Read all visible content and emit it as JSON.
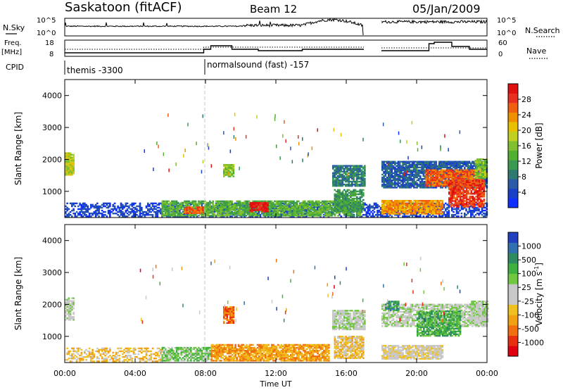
{
  "header": {
    "station": "Saskatoon (fitACF)",
    "beam": "Beam 12",
    "date": "05/Jan/2009"
  },
  "side_labels": {
    "nsky": "N.Sky",
    "freq": "Freq.",
    "freq_unit": "[MHz]",
    "cpid": "CPID",
    "nsearch": "N.Search",
    "nave": "Nave"
  },
  "noise_axis": {
    "left_top": "10^5",
    "left_bottom": "10^0",
    "right_top": "10^5",
    "right_bottom": "10^0"
  },
  "freq_axis": {
    "left_top": "18",
    "left_bottom": "8",
    "right_top": "60",
    "right_bottom": "0"
  },
  "cpid": [
    {
      "label": "themis -3300",
      "start_hour": 0
    },
    {
      "label": "normalsound (fast) -157",
      "start_hour": 8
    }
  ],
  "colors": {
    "axis": "#000000",
    "marker_line": "#c8c8c8"
  },
  "chart_data": [
    {
      "type": "heatmap",
      "name": "power",
      "ylabel": "Slant Range [km]",
      "yticks": [
        "1000",
        "2000",
        "3000",
        "4000"
      ],
      "xlim_hours": [
        0,
        24
      ],
      "ylim_km": [
        180,
        4500
      ],
      "colorbar": {
        "label": "Power [dB]",
        "ticks": [
          "4",
          "8",
          "12",
          "16",
          "20",
          "24",
          "28"
        ],
        "colors": [
          "#1030ff",
          "#1a40c8",
          "#2a5aa8",
          "#2e7a70",
          "#3a9a52",
          "#52b030",
          "#80c030",
          "#c0d020",
          "#e8c000",
          "#f09000",
          "#f06010",
          "#e83020",
          "#e01010"
        ]
      },
      "regions": [
        {
          "t0": 0.0,
          "t1": 0.5,
          "r0": 1500,
          "r1": 2200,
          "level": 7,
          "density": 0.95
        },
        {
          "t0": 0.0,
          "t1": 24.0,
          "r0": 200,
          "r1": 650,
          "level": 1,
          "density": 0.55
        },
        {
          "t0": 5.5,
          "t1": 16.8,
          "r0": 220,
          "r1": 700,
          "level": 5,
          "density": 0.8
        },
        {
          "t0": 6.8,
          "t1": 7.8,
          "r0": 300,
          "r1": 520,
          "level": 10,
          "density": 0.85
        },
        {
          "t0": 9.0,
          "t1": 9.6,
          "r0": 1450,
          "r1": 1850,
          "level": 6,
          "density": 0.85
        },
        {
          "t0": 10.5,
          "t1": 11.5,
          "r0": 350,
          "r1": 650,
          "level": 12,
          "density": 0.9
        },
        {
          "t0": 15.2,
          "t1": 17.0,
          "r0": 1150,
          "r1": 1800,
          "level": 3,
          "density": 0.85
        },
        {
          "t0": 15.3,
          "t1": 17.0,
          "r0": 350,
          "r1": 1050,
          "level": 4,
          "density": 0.8
        },
        {
          "t0": 18.0,
          "t1": 24.0,
          "r0": 1100,
          "r1": 1950,
          "level": 2,
          "density": 0.85
        },
        {
          "t0": 18.0,
          "t1": 21.5,
          "r0": 280,
          "r1": 700,
          "level": 9,
          "density": 0.9
        },
        {
          "t0": 20.5,
          "t1": 23.8,
          "r0": 1150,
          "r1": 1650,
          "level": 10,
          "density": 0.85
        },
        {
          "t0": 21.8,
          "t1": 23.8,
          "r0": 500,
          "r1": 1350,
          "level": 11,
          "density": 0.8
        },
        {
          "t0": 23.3,
          "t1": 24.0,
          "r0": 1400,
          "r1": 2000,
          "level": 6,
          "density": 0.8
        }
      ]
    },
    {
      "type": "heatmap",
      "name": "velocity",
      "ylabel": "Slant Range [km]",
      "yticks": [
        "1000",
        "2000",
        "3000",
        "4000"
      ],
      "xlim_hours": [
        0,
        24
      ],
      "ylim_km": [
        180,
        4500
      ],
      "xticks": [
        "00:00",
        "04:00",
        "08:00",
        "12:00",
        "16:00",
        "20:00",
        "00:00"
      ],
      "xlabel": "Time UT",
      "colorbar": {
        "label": "Velocity [m s^-1]",
        "ticks": [
          "1000",
          "500",
          "100",
          "25",
          "-25",
          "-100",
          "-500",
          "-1000"
        ],
        "colors": [
          "#2040c0",
          "#3070b0",
          "#2e8a60",
          "#40b040",
          "#70c840",
          "#c8c8c8",
          "#c8c8c8",
          "#f0c020",
          "#f0a010",
          "#f07010",
          "#e83010",
          "#e00010"
        ]
      },
      "regions": [
        {
          "t0": 0.0,
          "t1": 0.5,
          "r0": 1500,
          "r1": 2200,
          "level": 5,
          "density": 0.7
        },
        {
          "t0": 0.0,
          "t1": 5.5,
          "r0": 200,
          "r1": 650,
          "level": 7,
          "density": 0.45
        },
        {
          "t0": 5.5,
          "t1": 8.3,
          "r0": 220,
          "r1": 650,
          "level": 4,
          "density": 0.75
        },
        {
          "t0": 8.3,
          "t1": 15.0,
          "r0": 220,
          "r1": 750,
          "level": 8,
          "density": 0.8
        },
        {
          "t0": 9.0,
          "t1": 9.6,
          "r0": 1400,
          "r1": 1900,
          "level": 9,
          "density": 0.85
        },
        {
          "t0": 15.2,
          "t1": 17.0,
          "r0": 1200,
          "r1": 1800,
          "level": 5,
          "density": 0.85
        },
        {
          "t0": 15.3,
          "t1": 17.0,
          "r0": 300,
          "r1": 1000,
          "level": 7,
          "density": 0.8
        },
        {
          "t0": 18.0,
          "t1": 24.0,
          "r0": 1300,
          "r1": 2000,
          "level": 5,
          "density": 0.7
        },
        {
          "t0": 18.0,
          "t1": 21.5,
          "r0": 280,
          "r1": 700,
          "level": 6,
          "density": 0.85
        },
        {
          "t0": 20.0,
          "t1": 22.5,
          "r0": 1000,
          "r1": 1800,
          "level": 3,
          "density": 0.75
        },
        {
          "t0": 18.2,
          "t1": 19.0,
          "r0": 1800,
          "r1": 2100,
          "level": 2,
          "density": 0.6
        },
        {
          "t0": 23.0,
          "t1": 24.0,
          "r0": 1400,
          "r1": 2100,
          "level": 5,
          "density": 0.75
        }
      ]
    }
  ]
}
